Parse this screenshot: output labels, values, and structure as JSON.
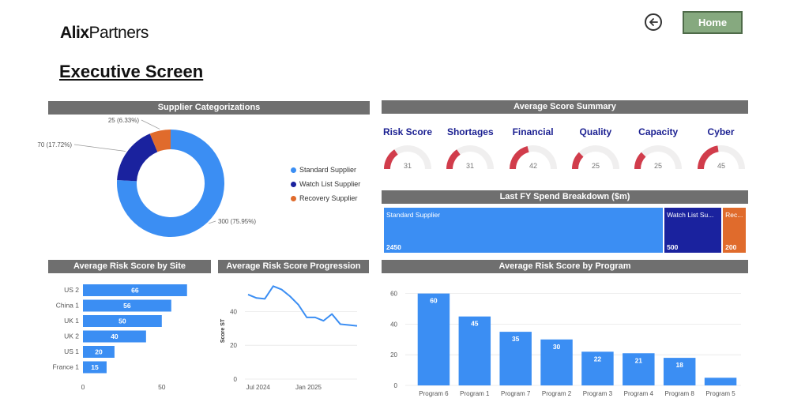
{
  "header": {
    "logo_bold": "Alix",
    "logo_light": "Partners",
    "title": "Executive Screen",
    "home_label": "Home"
  },
  "supplier_categorizations": {
    "title": "Supplier Categorizations",
    "chart_data": {
      "type": "pie",
      "title": "Supplier Categorizations",
      "slices": [
        {
          "label": "Standard Supplier",
          "value": 300,
          "text": "300 (75.95%)",
          "color": "#3b8ef3"
        },
        {
          "label": "Watch List Supplier",
          "value": 70,
          "text": "70 (17.72%)",
          "color": "#1a229e"
        },
        {
          "label": "Recovery Supplier",
          "value": 25,
          "text": "25 (6.33%)",
          "color": "#e06b2c"
        }
      ]
    }
  },
  "average_score_summary": {
    "title": "Average Score Summary",
    "gauges": [
      {
        "label": "Risk Score",
        "value": "31",
        "fraction": 0.31
      },
      {
        "label": "Shortages",
        "value": "31",
        "fraction": 0.31
      },
      {
        "label": "Financial",
        "value": "42",
        "fraction": 0.42
      },
      {
        "label": "Quality",
        "value": "25",
        "fraction": 0.25
      },
      {
        "label": "Capacity",
        "value": "25",
        "fraction": 0.25
      },
      {
        "label": "Cyber",
        "value": "45",
        "fraction": 0.45
      }
    ],
    "gauge_color": "#d13c4b",
    "gauge_track": "#f0efef"
  },
  "spend_breakdown": {
    "title": "Last FY Spend Breakdown ($m)",
    "cells": [
      {
        "label": "Standard Supplier",
        "value": 2450,
        "value_text": "2450",
        "color": "#3b8ef3"
      },
      {
        "label": "Watch List Su...",
        "value": 500,
        "value_text": "500",
        "color": "#1a229e"
      },
      {
        "label": "Rec...",
        "value": 200,
        "value_text": "200",
        "color": "#e06b2c"
      }
    ]
  },
  "risk_by_site": {
    "title": "Average Risk Score by Site",
    "chart_data": {
      "type": "bar",
      "orientation": "horizontal",
      "title": "Average Risk Score by Site",
      "categories": [
        "US 2",
        "China 1",
        "UK 1",
        "UK 2",
        "US 1",
        "France 1"
      ],
      "values": [
        66,
        56,
        50,
        40,
        20,
        15
      ],
      "xlim": [
        0,
        75
      ],
      "xticks": [
        "0",
        "50"
      ],
      "color": "#3b8ef3"
    }
  },
  "risk_progression": {
    "title": "Average Risk Score Progression",
    "chart_data": {
      "type": "line",
      "title": "Average Risk Score Progression",
      "ylabel": "Score ST",
      "x": [
        0,
        1,
        2,
        3,
        4,
        5,
        6,
        7,
        8,
        9,
        10,
        11,
        12,
        13
      ],
      "y": [
        50,
        48,
        47.5,
        55,
        53,
        49,
        44,
        36.5,
        36.5,
        34.5,
        38.5,
        32.5,
        32,
        31.5
      ],
      "ylim": [
        0,
        57
      ],
      "yticks": [
        "0",
        "20",
        "40"
      ],
      "xtick_labels": [
        "Jul 2024",
        "Jan 2025"
      ],
      "xtick_positions": [
        1.2,
        7.2
      ],
      "color": "#3b8ef3"
    }
  },
  "risk_by_program": {
    "title": "Average Risk Score by Program",
    "chart_data": {
      "type": "bar",
      "title": "Average Risk Score by Program",
      "categories": [
        "Program 6",
        "Program 1",
        "Program 7",
        "Program 2",
        "Program 3",
        "Program 4",
        "Program 8",
        "Program 5"
      ],
      "values": [
        60,
        45,
        35,
        30,
        22,
        21,
        18,
        5
      ],
      "labels": [
        "60",
        "45",
        "35",
        "30",
        "22",
        "21",
        "18",
        ""
      ],
      "ylim": [
        0,
        65
      ],
      "yticks": [
        "0",
        "20",
        "40",
        "60"
      ],
      "color": "#3b8ef3"
    }
  }
}
